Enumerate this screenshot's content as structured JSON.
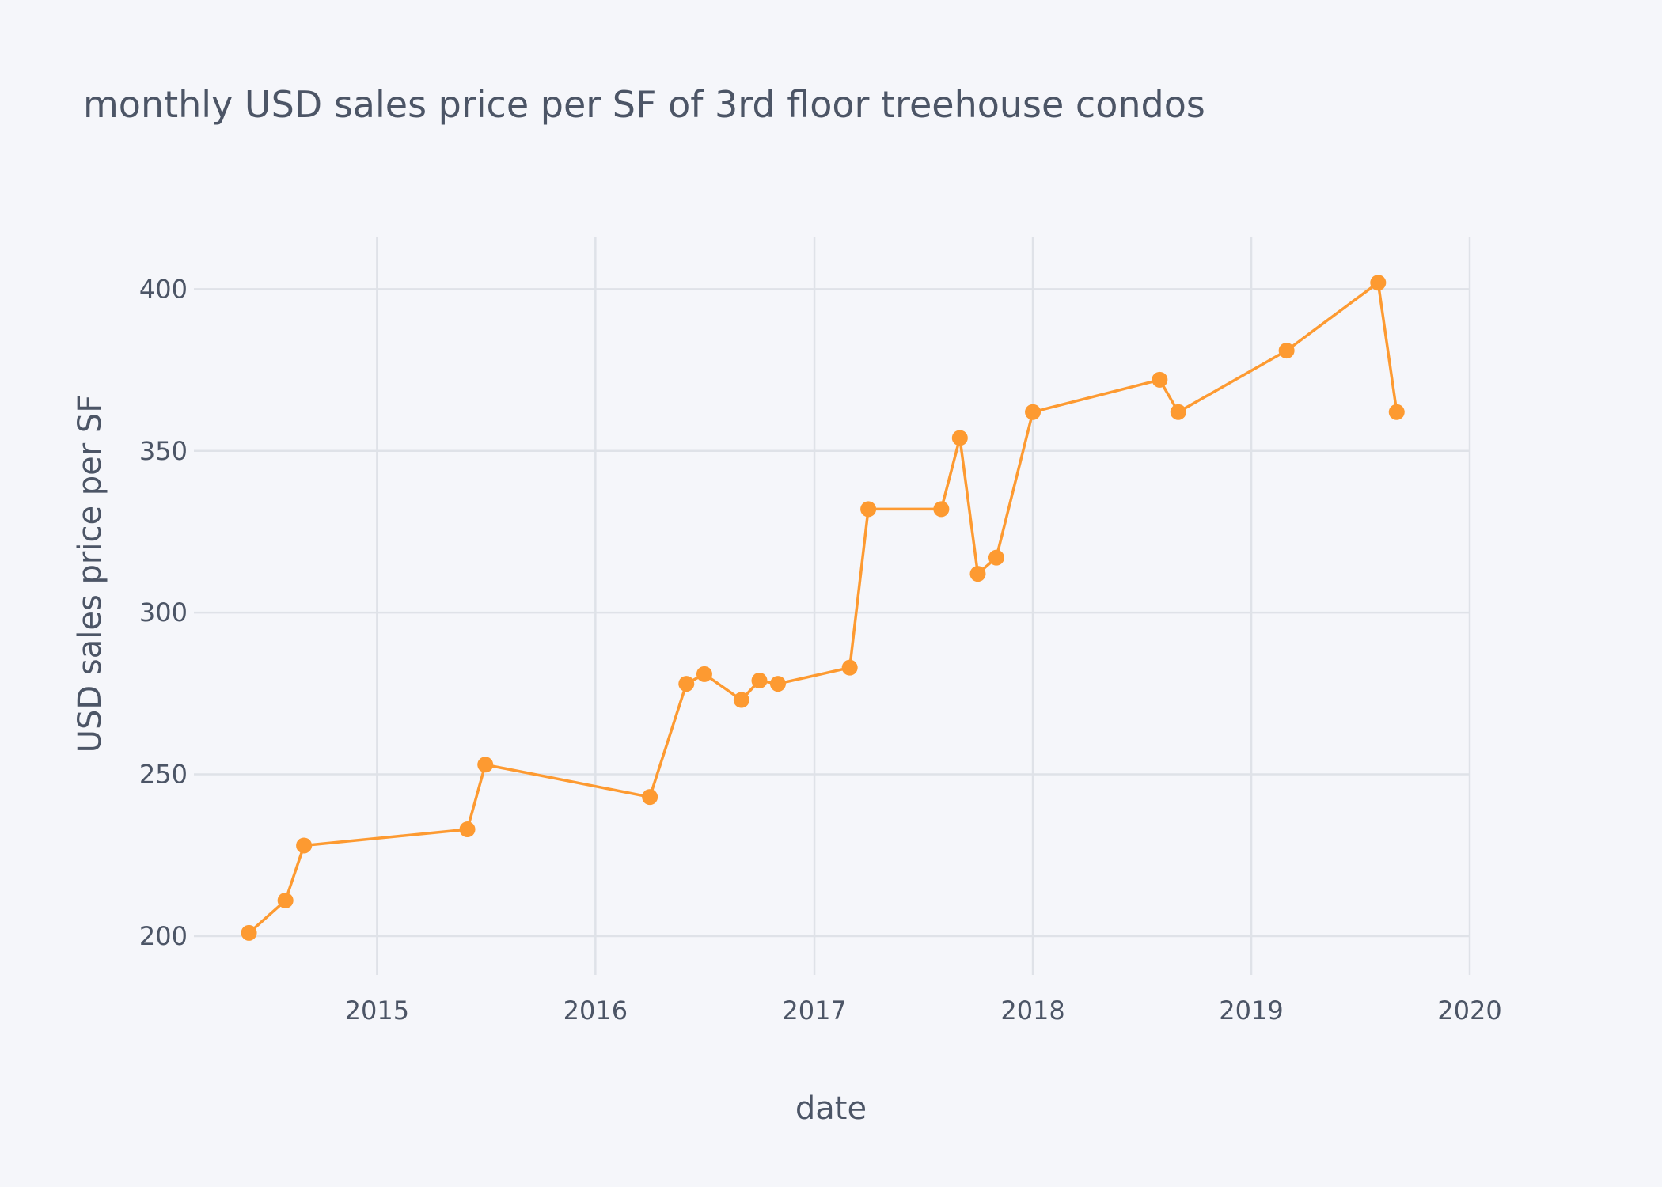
{
  "chart_data": {
    "type": "line",
    "title": "monthly USD sales price per SF of 3rd floor treehouse condos",
    "xlabel": "date",
    "ylabel": "USD sales price per SF",
    "x_type": "date",
    "xlim": [
      "2014-03-01",
      "2020-01-01"
    ],
    "ylim": [
      188,
      416
    ],
    "x_ticks": [
      {
        "value": "2015-01-01",
        "label": "2015"
      },
      {
        "value": "2016-01-01",
        "label": "2016"
      },
      {
        "value": "2017-01-01",
        "label": "2017"
      },
      {
        "value": "2018-01-01",
        "label": "2018"
      },
      {
        "value": "2019-01-01",
        "label": "2019"
      },
      {
        "value": "2020-01-01",
        "label": "2020"
      }
    ],
    "y_ticks": [
      200,
      250,
      300,
      350,
      400
    ],
    "grid": true,
    "legend": "none",
    "series": [
      {
        "color": "#fd9a31",
        "points": [
          {
            "x": "2014-06-01",
            "y": 201
          },
          {
            "x": "2014-08-01",
            "y": 211
          },
          {
            "x": "2014-09-01",
            "y": 228
          },
          {
            "x": "2015-06-01",
            "y": 233
          },
          {
            "x": "2015-07-01",
            "y": 253
          },
          {
            "x": "2016-04-01",
            "y": 243
          },
          {
            "x": "2016-06-01",
            "y": 278
          },
          {
            "x": "2016-07-01",
            "y": 281
          },
          {
            "x": "2016-09-01",
            "y": 273
          },
          {
            "x": "2016-10-01",
            "y": 279
          },
          {
            "x": "2016-11-01",
            "y": 278
          },
          {
            "x": "2017-03-01",
            "y": 283
          },
          {
            "x": "2017-04-01",
            "y": 332
          },
          {
            "x": "2017-08-01",
            "y": 332
          },
          {
            "x": "2017-09-01",
            "y": 354
          },
          {
            "x": "2017-10-01",
            "y": 312
          },
          {
            "x": "2017-11-01",
            "y": 317
          },
          {
            "x": "2018-01-01",
            "y": 362
          },
          {
            "x": "2018-08-01",
            "y": 372
          },
          {
            "x": "2018-09-01",
            "y": 362
          },
          {
            "x": "2019-03-01",
            "y": 381
          },
          {
            "x": "2019-08-01",
            "y": 402
          },
          {
            "x": "2019-09-01",
            "y": 362
          }
        ]
      }
    ]
  }
}
